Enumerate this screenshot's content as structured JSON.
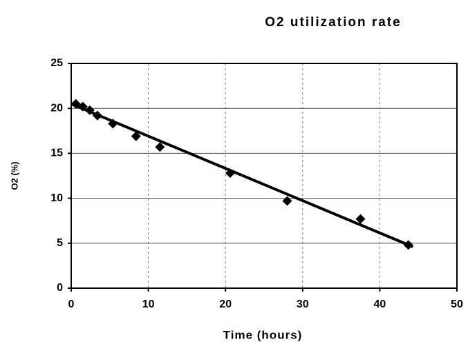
{
  "chart_data": {
    "type": "scatter",
    "title": "O2 utilization rate",
    "xlabel": "Time (hours)",
    "ylabel": "O2 (%)",
    "x": [
      0.6,
      1.5,
      2.4,
      3.4,
      5.4,
      8.4,
      11.5,
      20.6,
      28,
      37.5,
      43.7
    ],
    "values": [
      20.5,
      20.2,
      19.8,
      19.2,
      18.3,
      16.9,
      15.7,
      12.8,
      9.7,
      7.7,
      4.8
    ],
    "color": "#000000",
    "trendline": {
      "x": [
        0,
        44.3
      ],
      "values": [
        20.5,
        4.6
      ]
    },
    "xlim": [
      0,
      50
    ],
    "xticks": [
      0,
      10,
      20,
      30,
      40,
      50
    ],
    "ylim": [
      0,
      25
    ],
    "yticks": [
      0,
      5,
      10,
      15,
      20,
      25
    ],
    "grid": true
  }
}
